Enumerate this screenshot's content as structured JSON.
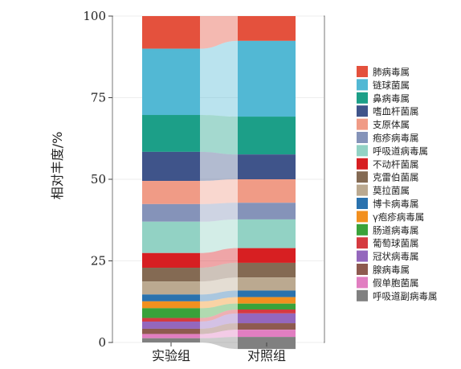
{
  "chart_data": {
    "type": "bar",
    "stacked": true,
    "alluvial_flows": true,
    "categories": [
      "实验组",
      "对照组"
    ],
    "ylabel": "相对丰度/%",
    "xlabel": "",
    "ylim": [
      0,
      100
    ],
    "yticks": [
      0,
      25,
      50,
      75,
      100
    ],
    "grid": true,
    "legend_position": "right",
    "series": [
      {
        "name": "肺病毒属",
        "color": "#e4513d",
        "values": [
          10.0,
          7.6
        ]
      },
      {
        "name": "链球菌属",
        "color": "#52b8d4",
        "values": [
          20.3,
          23.2
        ]
      },
      {
        "name": "鼻病毒属",
        "color": "#1c9f88",
        "values": [
          11.3,
          11.6
        ]
      },
      {
        "name": "嗜血杆菌属",
        "color": "#3f548a",
        "values": [
          8.9,
          7.6
        ]
      },
      {
        "name": "支原体属",
        "color": "#f09b86",
        "values": [
          7.1,
          7.2
        ]
      },
      {
        "name": "疱疹病毒属",
        "color": "#8593b9",
        "values": [
          5.4,
          5.1
        ]
      },
      {
        "name": "呼吸道病毒属",
        "color": "#92d2c4",
        "values": [
          9.6,
          8.8
        ]
      },
      {
        "name": "不动杆菌属",
        "color": "#d71f22",
        "values": [
          4.5,
          4.5
        ]
      },
      {
        "name": "克雷伯菌属",
        "color": "#846a53",
        "values": [
          4.2,
          4.5
        ]
      },
      {
        "name": "莫拉菌属",
        "color": "#bba990",
        "values": [
          4.0,
          4.0
        ]
      },
      {
        "name": "博卡病毒属",
        "color": "#2a72ae",
        "values": [
          2.1,
          2.0
        ]
      },
      {
        "name": "γ疱疹病毒属",
        "color": "#f2901f",
        "values": [
          2.1,
          2.0
        ]
      },
      {
        "name": "肠道病毒属",
        "color": "#3aa23a",
        "values": [
          3.0,
          1.8
        ]
      },
      {
        "name": "葡萄球菌属",
        "color": "#d53a40",
        "values": [
          1.1,
          1.2
        ]
      },
      {
        "name": "冠状病毒属",
        "color": "#9467bd",
        "values": [
          2.2,
          3.0
        ]
      },
      {
        "name": "腺病毒属",
        "color": "#8e5a4f",
        "values": [
          1.6,
          2.0
        ]
      },
      {
        "name": "假单胞菌属",
        "color": "#e17ec1",
        "values": [
          1.3,
          2.2
        ]
      },
      {
        "name": "呼吸道副病毒属",
        "color": "#808080",
        "values": [
          1.3,
          3.7
        ]
      }
    ]
  }
}
